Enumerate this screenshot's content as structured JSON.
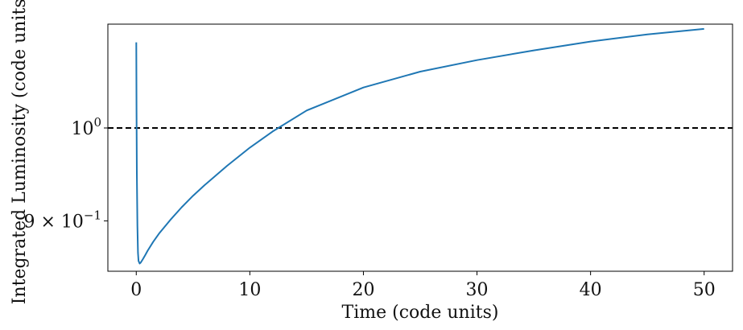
{
  "chart_data": {
    "type": "line",
    "xlabel": "Time (code units)",
    "ylabel": "Integrated Luminosity (code units)",
    "xlim": [
      -2.5,
      52.5
    ],
    "ylim": [
      0.85,
      1.125
    ],
    "y_scale": "log",
    "grid": false,
    "legend": "none",
    "x_ticks": [
      0,
      10,
      20,
      30,
      40,
      50
    ],
    "x_tick_labels": [
      "0",
      "10",
      "20",
      "30",
      "40",
      "50"
    ],
    "y_ticks": [
      {
        "value": 1.0,
        "mantissa": "",
        "base": "10",
        "exponent": "0"
      },
      {
        "value": 0.9,
        "mantissa": "9 × ",
        "base": "10",
        "exponent": "−1"
      }
    ],
    "reference_line": {
      "y": 1.0,
      "style": "dashed",
      "color": "#000000"
    },
    "series": [
      {
        "color": "#1f77b4",
        "x": [
          0.0,
          0.02,
          0.05,
          0.1,
          0.15,
          0.2,
          0.3,
          0.4,
          0.6,
          0.8,
          1.0,
          1.5,
          2.0,
          3.0,
          4.0,
          5.0,
          6.0,
          8.0,
          10.0,
          12.0,
          15.0,
          20.0,
          25.0,
          30.0,
          35.0,
          40.0,
          45.0,
          50.0
        ],
        "y": [
          1.102,
          1.02,
          0.95,
          0.895,
          0.868,
          0.86,
          0.8575,
          0.8585,
          0.862,
          0.866,
          0.87,
          0.879,
          0.887,
          0.901,
          0.914,
          0.926,
          0.937,
          0.958,
          0.978,
          0.996,
          1.02,
          1.047,
          1.066,
          1.08,
          1.092,
          1.103,
          1.112,
          1.119
        ]
      }
    ]
  }
}
